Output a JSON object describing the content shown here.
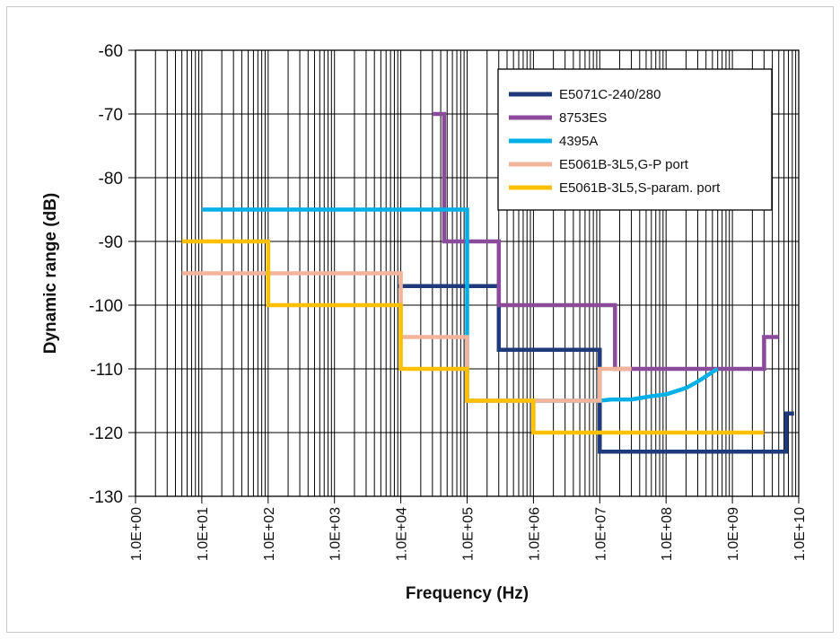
{
  "chart_data": {
    "type": "line",
    "title": "",
    "xlabel": "Frequency (Hz)",
    "ylabel": "Dynamic range (dB)",
    "x_scale": "log",
    "xlim": [
      1,
      10000000000
    ],
    "ylim": [
      -130,
      -60
    ],
    "x_tick_labels": [
      "1.0E+00",
      "1.0E+01",
      "1.0E+02",
      "1.0E+03",
      "1.0E+04",
      "1.0E+05",
      "1.0E+06",
      "1.0E+07",
      "1.0E+08",
      "1.0E+09",
      "1.0E+10"
    ],
    "y_tick_labels": [
      "-60",
      "-70",
      "-80",
      "-90",
      "-100",
      "-110",
      "-120",
      "-130"
    ],
    "grid": true,
    "legend_position": "top-right",
    "series": [
      {
        "name": "E5071C-240/280",
        "color": "#1f3a7a",
        "points": [
          [
            9000,
            -97
          ],
          [
            300000,
            -97
          ],
          [
            300000,
            -107
          ],
          [
            10000000,
            -107
          ],
          [
            10000000,
            -123
          ],
          [
            6500000000,
            -123
          ],
          [
            6500000000,
            -117
          ],
          [
            8500000000,
            -117
          ]
        ]
      },
      {
        "name": "8753ES",
        "color": "#8b4a9c",
        "points": [
          [
            30000,
            -70
          ],
          [
            45000,
            -70
          ],
          [
            45000,
            -90
          ],
          [
            300000,
            -90
          ],
          [
            300000,
            -100
          ],
          [
            17000000,
            -100
          ],
          [
            17000000,
            -110
          ],
          [
            3000000000,
            -110
          ],
          [
            3000000000,
            -105
          ],
          [
            5000000000,
            -105
          ]
        ]
      },
      {
        "name": "4395A",
        "color": "#00b0e6",
        "points": [
          [
            10,
            -85
          ],
          [
            100000,
            -85
          ],
          [
            100000,
            -115
          ],
          [
            10000000,
            -115
          ],
          [
            15000000,
            -114.8
          ],
          [
            30000000,
            -114.8
          ],
          [
            60000000,
            -114.3
          ],
          [
            100000000,
            -114
          ],
          [
            200000000,
            -113
          ],
          [
            300000000,
            -112
          ],
          [
            500000000,
            -110.5
          ],
          [
            600000000,
            -110
          ]
        ]
      },
      {
        "name": "E5061B-3L5,G-P port",
        "color": "#f2b49a",
        "points": [
          [
            5,
            -95
          ],
          [
            10000,
            -95
          ],
          [
            10000,
            -105
          ],
          [
            100000,
            -105
          ],
          [
            100000,
            -115
          ],
          [
            10000000,
            -115
          ],
          [
            10000000,
            -110
          ],
          [
            30000000,
            -110
          ]
        ]
      },
      {
        "name": "E5061B-3L5,S-param. port",
        "color": "#ffc000",
        "points": [
          [
            5,
            -90
          ],
          [
            100,
            -90
          ],
          [
            100,
            -100
          ],
          [
            10000,
            -100
          ],
          [
            10000,
            -110
          ],
          [
            100000,
            -110
          ],
          [
            100000,
            -115
          ],
          [
            1000000,
            -115
          ],
          [
            1000000,
            -120
          ],
          [
            3000000000,
            -120
          ]
        ]
      }
    ]
  }
}
